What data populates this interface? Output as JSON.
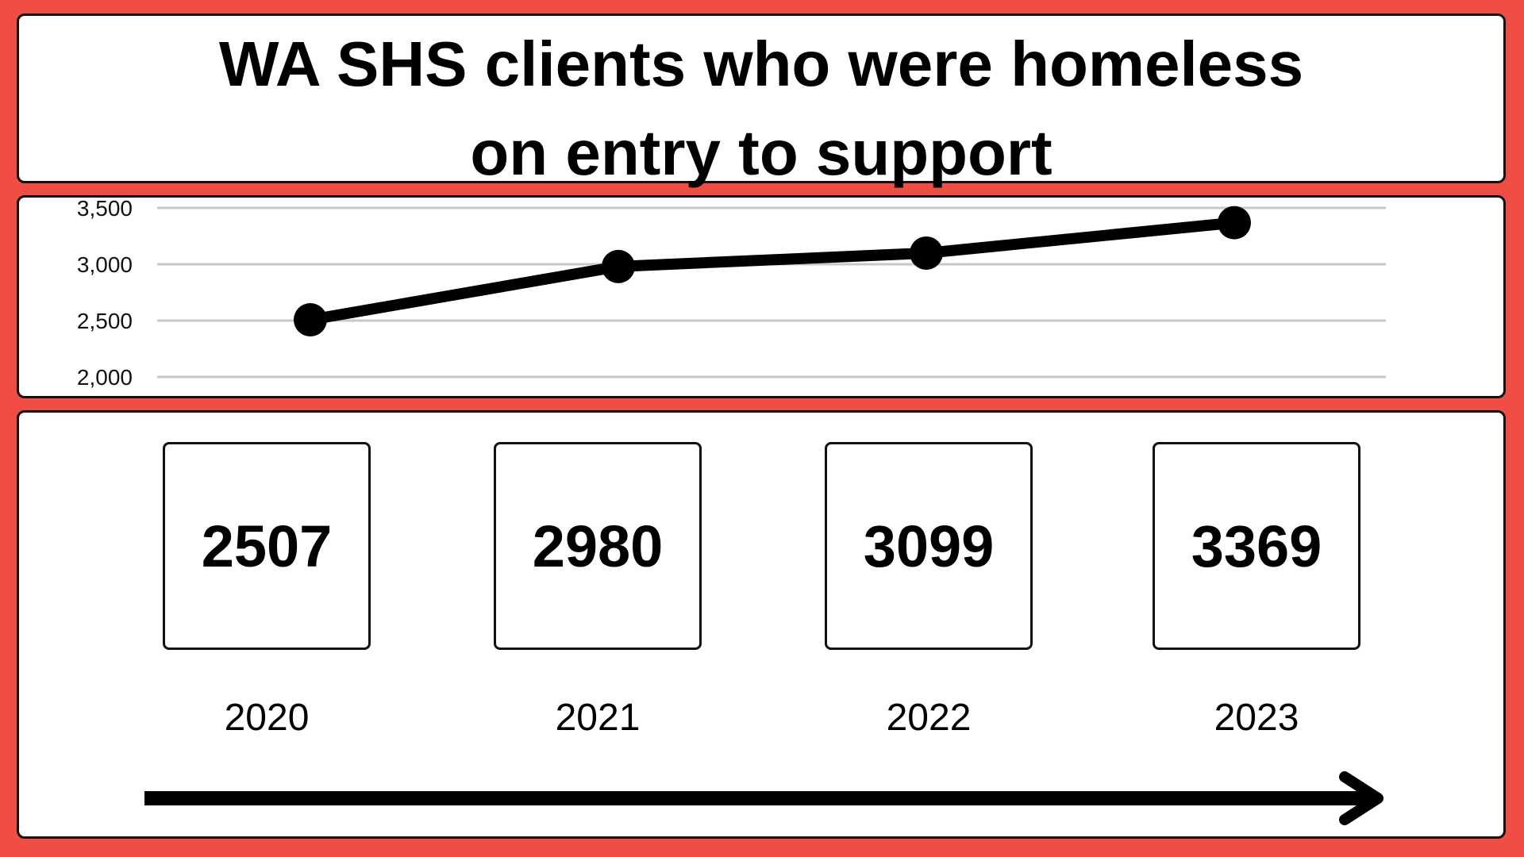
{
  "title_lines": [
    "WA SHS clients who were homeless",
    "on entry to support"
  ],
  "colors": {
    "background": "#f04e45",
    "panel": "#ffffff",
    "line": "#000000",
    "grid": "#c8c8c8"
  },
  "chart_data": {
    "type": "line",
    "title": "WA SHS clients who were homeless on entry to support",
    "x": [
      "2020",
      "2021",
      "2022",
      "2023"
    ],
    "values": [
      2507,
      2980,
      3099,
      3369
    ],
    "ylim": [
      2000,
      3500
    ],
    "yticks": [
      2000,
      2500,
      3000,
      3500
    ],
    "ytick_labels": [
      "2,000",
      "2,500",
      "3,000",
      "3,500"
    ],
    "grid": true,
    "xlabel": "",
    "ylabel": ""
  },
  "cards": [
    {
      "value": "2507",
      "year": "2020"
    },
    {
      "value": "2980",
      "year": "2021"
    },
    {
      "value": "3099",
      "year": "2022"
    },
    {
      "value": "3369",
      "year": "2023"
    }
  ]
}
